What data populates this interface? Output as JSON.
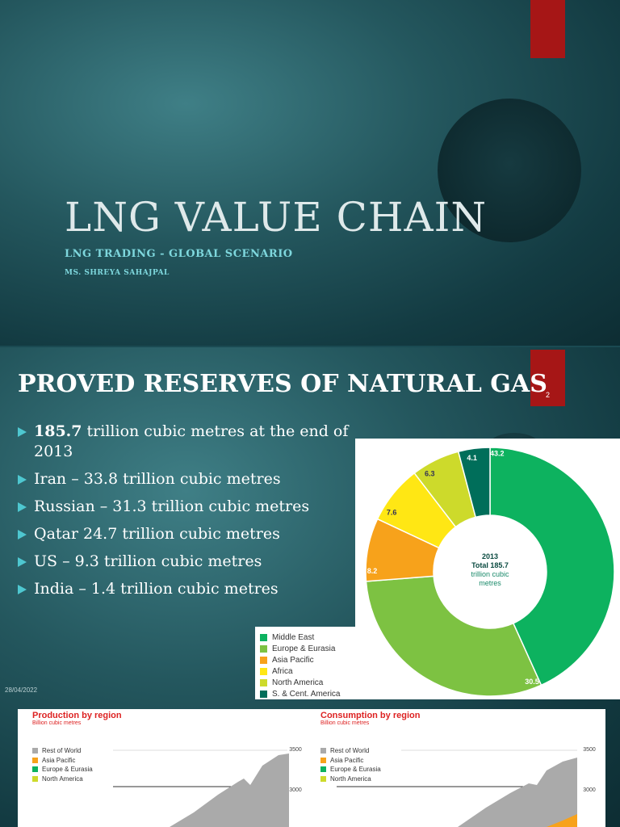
{
  "slide1": {
    "title": "LNG VALUE CHAIN",
    "subtitle": "LNG TRADING - GLOBAL SCENARIO",
    "author": "MS. SHREYA SAHAJPAL"
  },
  "slide2": {
    "title": "PROVED RESERVES OF NATURAL GAS",
    "page_number": "2",
    "date": "28/04/2022",
    "bullets": [
      {
        "bold": "185.7",
        "text": " trillion cubic metres at the end of 2013"
      },
      {
        "bold": "",
        "text": "Iran –  33.8 trillion cubic metres"
      },
      {
        "bold": "",
        "text": "Russian – 31.3 trillion cubic metres"
      },
      {
        "bold": "",
        "text": "Qatar 24.7 trillion cubic metres"
      },
      {
        "bold": "",
        "text": "US – 9.3 trillion cubic metres"
      },
      {
        "bold": "",
        "text": "India – 1.4 trillion cubic metres"
      }
    ]
  },
  "colors": {
    "accent_red": "#a61616",
    "bullet": "#4ec7d0",
    "middle_east": "#0db25f",
    "europe_eurasia": "#7dc242",
    "asia_pacific": "#f7a21b",
    "africa": "#ffe714",
    "north_america": "#cdda2b",
    "s_cent_america": "#006e5a",
    "rest_of_world": "#aaaaaa"
  },
  "chart_data": [
    {
      "type": "pie",
      "donut": true,
      "center_text": [
        "2013",
        "Total 185.7",
        "trillion cubic",
        "metres"
      ],
      "categories": [
        "Middle East",
        "Europe & Eurasia",
        "Asia Pacific",
        "Africa",
        "North America",
        "S. & Cent. America"
      ],
      "values": [
        43.2,
        30.5,
        8.2,
        7.6,
        6.3,
        4.1
      ],
      "labels": [
        "43.2",
        "30.5",
        "8.2",
        "7.6",
        "6.3",
        "4.1"
      ],
      "legend_placement": "bottom-left"
    },
    {
      "type": "area",
      "title": "Production by region",
      "ylabel": "Billion cubic metres",
      "legend": [
        "Rest of World",
        "Asia Pacific",
        "Europe & Eurasia",
        "North America"
      ],
      "yticks": [
        "3500",
        "3000"
      ],
      "ylim": [
        2500,
        3500
      ]
    },
    {
      "type": "area",
      "title": "Consumption by region",
      "ylabel": "Billion cubic metres",
      "legend": [
        "Rest of World",
        "Asia Pacific",
        "Europe & Eurasia",
        "North America"
      ],
      "yticks": [
        "3500",
        "3000"
      ],
      "ylim": [
        2500,
        3500
      ]
    }
  ]
}
